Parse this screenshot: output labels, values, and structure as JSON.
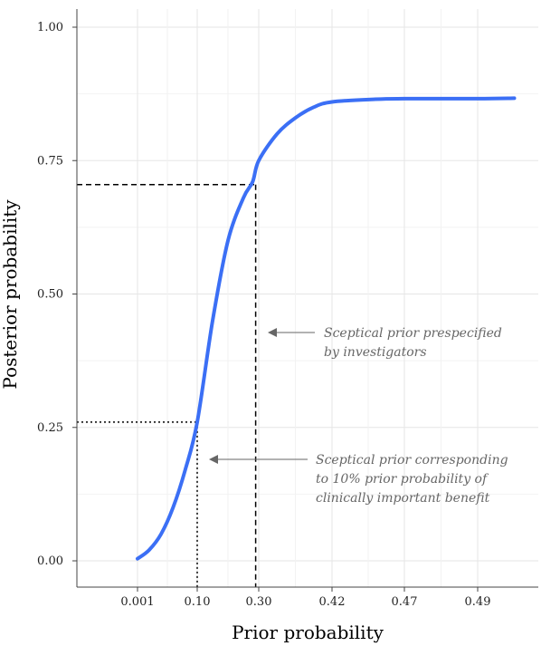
{
  "chart_data": {
    "type": "line",
    "title": "",
    "xlabel": "Prior probability",
    "ylabel": "Posterior probability",
    "x_ticks": [
      "0.001",
      "0.10",
      "0.30",
      "0.42",
      "0.47",
      "0.49"
    ],
    "y_ticks": [
      "0.00",
      "0.25",
      "0.50",
      "0.75",
      "1.00"
    ],
    "ylim": [
      0,
      1
    ],
    "grid": true,
    "series": [
      {
        "color": "#3b6ff5",
        "note_x": "x values are positions on the prior-probability tick scale",
        "points": [
          [
            0.001,
            0.004
          ],
          [
            0.02,
            0.02
          ],
          [
            0.04,
            0.05
          ],
          [
            0.06,
            0.1
          ],
          [
            0.08,
            0.17
          ],
          [
            0.1,
            0.26
          ],
          [
            0.15,
            0.45
          ],
          [
            0.2,
            0.6
          ],
          [
            0.25,
            0.68
          ],
          [
            0.28,
            0.71
          ],
          [
            0.3,
            0.75
          ],
          [
            0.33,
            0.8
          ],
          [
            0.36,
            0.83
          ],
          [
            0.39,
            0.85
          ],
          [
            0.42,
            0.86
          ],
          [
            0.45,
            0.865
          ],
          [
            0.47,
            0.866
          ],
          [
            0.49,
            0.866
          ],
          [
            0.5,
            0.867
          ]
        ]
      }
    ],
    "reference_lines": [
      {
        "style": "dashed",
        "x": 0.29,
        "y": 0.705
      },
      {
        "style": "dotted",
        "x": 0.1,
        "y": 0.26
      }
    ],
    "annotations": [
      {
        "lines": [
          "Sceptical prior prespecified",
          "by investigators"
        ],
        "arrow_target": "dashed"
      },
      {
        "lines": [
          "Sceptical prior corresponding",
          "to 10% prior probability of",
          "clinically important benefit"
        ],
        "arrow_target": "dotted"
      }
    ]
  }
}
